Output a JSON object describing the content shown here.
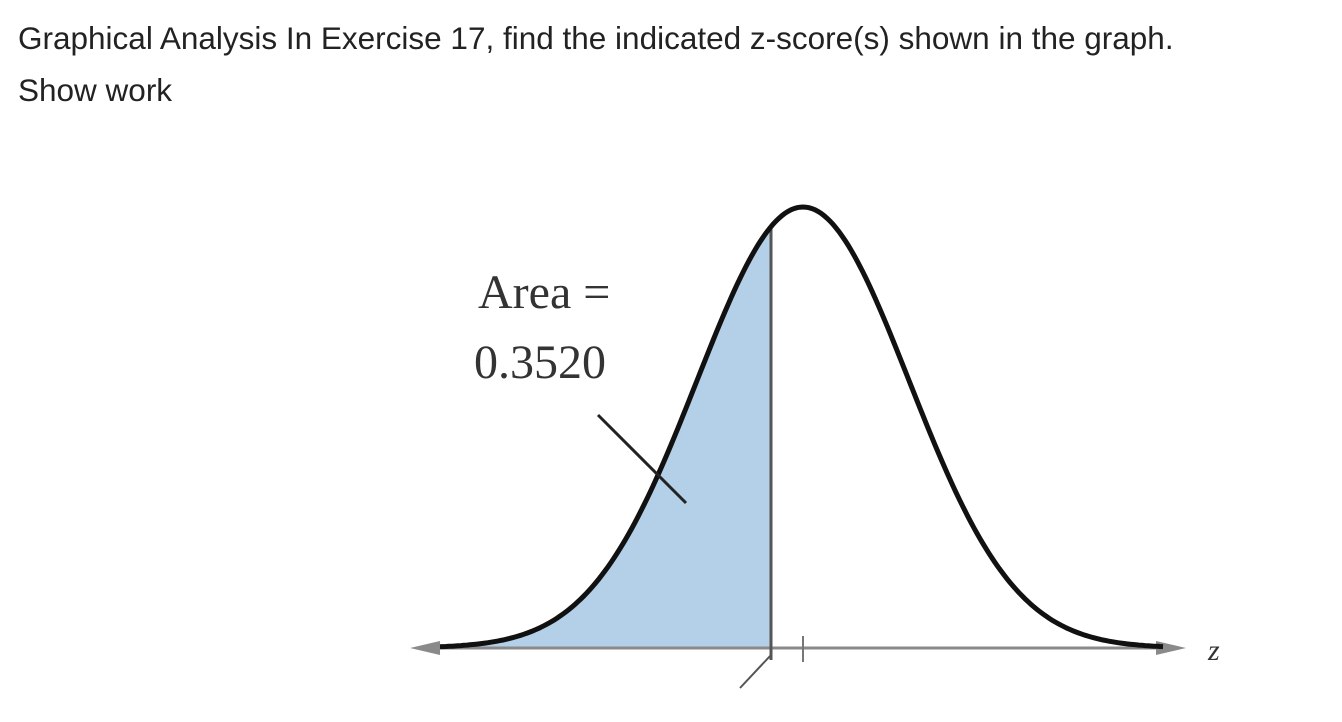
{
  "question": {
    "text": "Graphical Analysis In Exercise 17, find the indicated z-score(s) shown in the graph. Show work"
  },
  "figure": {
    "area_label": "Area =",
    "area_value": "0.3520",
    "axis_label": "z"
  }
}
